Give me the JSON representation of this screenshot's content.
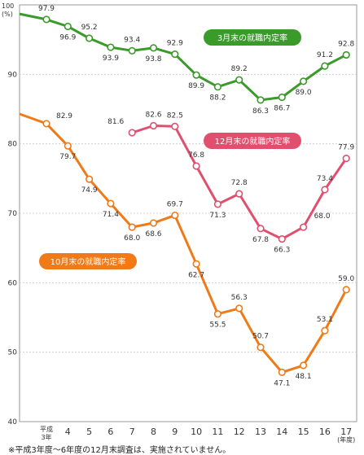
{
  "chart_data": {
    "type": "line",
    "y_unit_value": "100",
    "y_unit_label": "(%)",
    "ylim": [
      40,
      100
    ],
    "y_ticks": [
      40,
      50,
      60,
      70,
      80,
      90
    ],
    "x_categories": [
      "平成\n3年",
      "4",
      "5",
      "6",
      "7",
      "8",
      "9",
      "10",
      "11",
      "12",
      "13",
      "14",
      "15",
      "16",
      "17"
    ],
    "x_unit_label": "(年度)",
    "grid": true,
    "series": [
      {
        "name": "3月末の就職内定率",
        "color": "#3a9a2a",
        "lead_in": 98.7,
        "values": [
          97.9,
          96.9,
          95.2,
          93.9,
          93.4,
          93.8,
          92.9,
          89.9,
          88.2,
          89.2,
          86.3,
          86.7,
          89.0,
          91.2,
          92.8
        ],
        "labels": [
          "97.9",
          "96.9",
          "95.2",
          "93.9",
          "93.4",
          "93.8",
          "92.9",
          "89.9",
          "88.2",
          "89.2",
          "86.3",
          "86.7",
          "89.0",
          "91.2",
          "92.8"
        ]
      },
      {
        "name": "12月末の就職内定率",
        "color": "#e0506e",
        "lead_in": null,
        "values": [
          null,
          null,
          null,
          null,
          81.6,
          82.6,
          82.5,
          76.8,
          71.3,
          72.8,
          67.8,
          66.3,
          68.0,
          73.4,
          77.9
        ],
        "labels": [
          null,
          null,
          null,
          null,
          "81.6",
          "82.6",
          "82.5",
          "76.8",
          "71.3",
          "72.8",
          "67.8",
          "66.3",
          "68.0",
          "73.4",
          "77.9"
        ]
      },
      {
        "name": "10月末の就職内定率",
        "color": "#f07a18",
        "lead_in": 84.3,
        "values": [
          82.9,
          79.7,
          74.9,
          71.4,
          68.0,
          68.6,
          69.7,
          62.7,
          55.5,
          56.3,
          50.7,
          47.1,
          48.1,
          53.1,
          59.0
        ],
        "labels": [
          "82.9",
          "79.7",
          "74.9",
          "71.4",
          "68.0",
          "68.6",
          "69.7",
          "62.7",
          "55.5",
          "56.3",
          "50.7",
          "47.1",
          "48.1",
          "53.1",
          "59.0"
        ]
      }
    ]
  },
  "footnote": "※平成3年度～6年度の12月末調査は、実施されていません。"
}
